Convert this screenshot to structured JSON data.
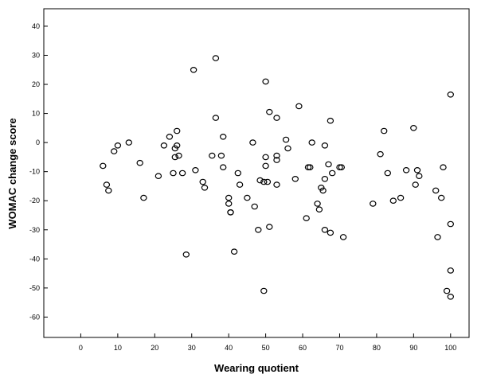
{
  "chart_data": {
    "type": "scatter",
    "title": "",
    "xlabel": "Wearing quotient",
    "ylabel": "WOMAC change score",
    "xlim": [
      -10,
      105
    ],
    "ylim": [
      -67,
      46
    ],
    "xticks": [
      0,
      10,
      20,
      30,
      40,
      50,
      60,
      70,
      80,
      90,
      100
    ],
    "yticks": [
      -60,
      -50,
      -40,
      -30,
      -20,
      -10,
      0,
      10,
      20,
      30,
      40
    ],
    "grid": false,
    "legend": "none",
    "colors": {
      "background": "#ffffff",
      "marker": "#000000",
      "axis": "#000000"
    },
    "series": [
      {
        "marker": "open-circle",
        "points": [
          [
            6,
            -8
          ],
          [
            7,
            -14.5
          ],
          [
            7.5,
            -16.5
          ],
          [
            9,
            -3
          ],
          [
            10,
            -1
          ],
          [
            13,
            0
          ],
          [
            16,
            -7
          ],
          [
            17,
            -19
          ],
          [
            21,
            -11.5
          ],
          [
            22.5,
            -1
          ],
          [
            24,
            2
          ],
          [
            25,
            -10.5
          ],
          [
            25.5,
            -2
          ],
          [
            25.5,
            -5
          ],
          [
            26,
            -1
          ],
          [
            26,
            4
          ],
          [
            26.5,
            -4.5
          ],
          [
            27.5,
            -10.5
          ],
          [
            28.5,
            -38.5
          ],
          [
            30.5,
            25
          ],
          [
            31,
            -9.5
          ],
          [
            33,
            -13.5
          ],
          [
            33.5,
            -15.5
          ],
          [
            35.5,
            -4.5
          ],
          [
            36.5,
            8.5
          ],
          [
            36.5,
            29
          ],
          [
            38,
            -4.5
          ],
          [
            38.5,
            2
          ],
          [
            38.5,
            -8.5
          ],
          [
            40,
            -19
          ],
          [
            40,
            -21
          ],
          [
            40.5,
            -24
          ],
          [
            40.5,
            -24
          ],
          [
            41.5,
            -37.5
          ],
          [
            42.5,
            -10.5
          ],
          [
            43,
            -14.5
          ],
          [
            45,
            -19
          ],
          [
            46.5,
            0
          ],
          [
            47,
            -22
          ],
          [
            48,
            -30
          ],
          [
            48.5,
            -13
          ],
          [
            49.5,
            -13.5
          ],
          [
            49.5,
            -51
          ],
          [
            50,
            -5
          ],
          [
            50,
            -8
          ],
          [
            50,
            21
          ],
          [
            50.5,
            -13.5
          ],
          [
            51,
            10.5
          ],
          [
            51,
            -29
          ],
          [
            53,
            -4.5
          ],
          [
            53,
            -6
          ],
          [
            53,
            8.5
          ],
          [
            53,
            -14.5
          ],
          [
            55.5,
            1
          ],
          [
            56,
            -2
          ],
          [
            58,
            -12.5
          ],
          [
            59,
            12.5
          ],
          [
            61,
            -26
          ],
          [
            61.5,
            -8.5
          ],
          [
            62,
            -8.5
          ],
          [
            62.5,
            0
          ],
          [
            64,
            -21
          ],
          [
            64.5,
            -23
          ],
          [
            65,
            -15.5
          ],
          [
            65.5,
            -16.5
          ],
          [
            66,
            -1
          ],
          [
            66,
            -12.5
          ],
          [
            66,
            -30
          ],
          [
            67,
            -7.5
          ],
          [
            67.5,
            -31
          ],
          [
            67.5,
            7.5
          ],
          [
            68,
            -10.5
          ],
          [
            70,
            -8.5
          ],
          [
            70.5,
            -8.5
          ],
          [
            71,
            -32.5
          ],
          [
            79,
            -21
          ],
          [
            81,
            -4
          ],
          [
            82,
            4
          ],
          [
            83,
            -10.5
          ],
          [
            84.5,
            -20
          ],
          [
            86.5,
            -19
          ],
          [
            88,
            -9.5
          ],
          [
            90,
            5
          ],
          [
            90.5,
            -14.5
          ],
          [
            91,
            -9.5
          ],
          [
            91.5,
            -11.5
          ],
          [
            96,
            -16.5
          ],
          [
            96.5,
            -32.5
          ],
          [
            97.5,
            -19
          ],
          [
            98,
            -8.5
          ],
          [
            99,
            -51
          ],
          [
            100,
            16.5
          ],
          [
            100,
            -28
          ],
          [
            100,
            -44
          ],
          [
            100,
            -53
          ]
        ]
      }
    ]
  }
}
